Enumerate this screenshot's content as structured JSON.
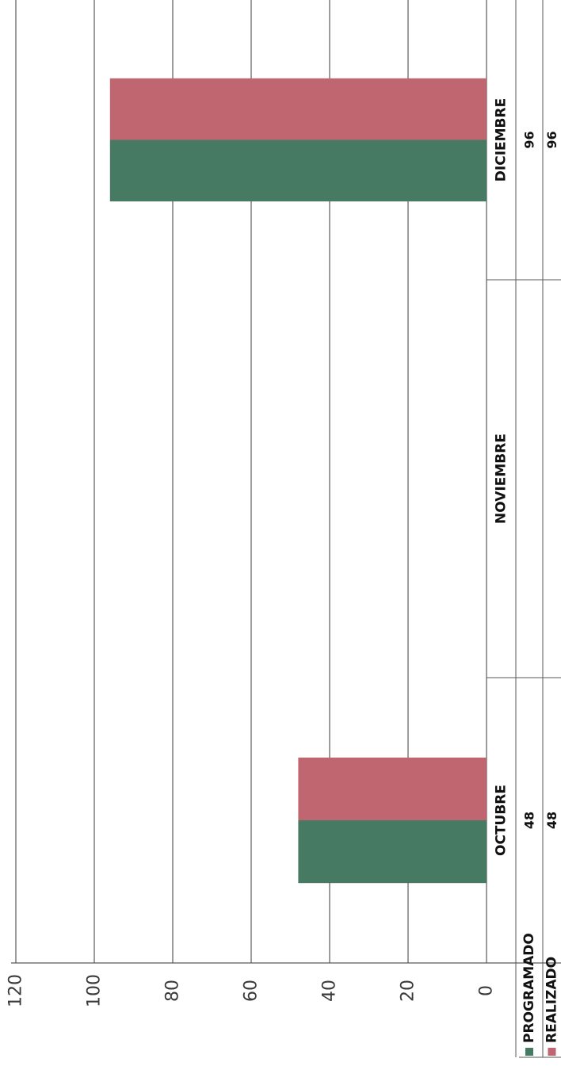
{
  "chart_data": {
    "type": "bar",
    "orientation": "rotated-90",
    "categories": [
      "OCTUBRE",
      "NOVIEMBRE",
      "DICIEMBRE"
    ],
    "series": [
      {
        "name": "PROGRAMADO",
        "values": [
          48,
          null,
          96
        ],
        "labels": [
          "48",
          "",
          "96"
        ],
        "color": "#467a62"
      },
      {
        "name": "REALIZADO",
        "values": [
          48,
          null,
          96
        ],
        "labels": [
          "48",
          "",
          "96"
        ],
        "color": "#bf6670"
      }
    ],
    "ylim": [
      0,
      120
    ],
    "yticks": [
      "0",
      "20",
      "40",
      "60",
      "80",
      "100",
      "120"
    ],
    "grid": true,
    "legend": "data-table",
    "title": "",
    "xlabel": "",
    "ylabel": ""
  }
}
